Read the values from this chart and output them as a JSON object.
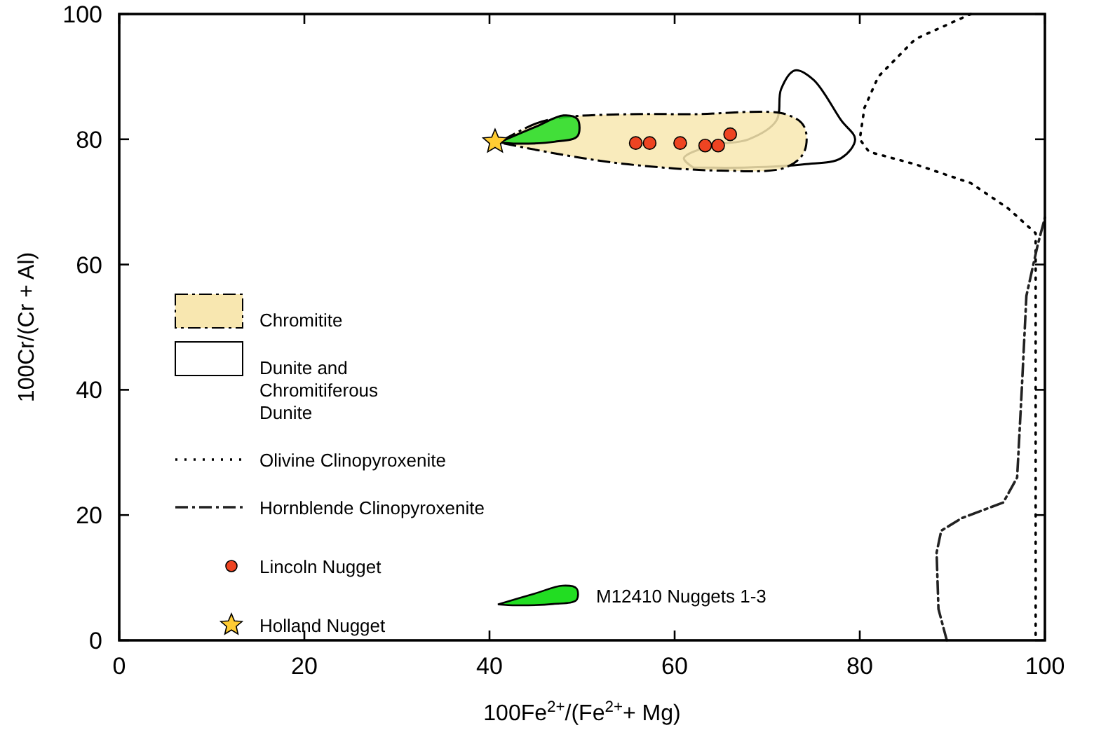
{
  "chart_data": {
    "type": "scatter",
    "xlabel": "100Fe$^{2+}$/(Fe$^{2+}$+ Mg)",
    "ylabel": "100Cr/(Cr + Al)",
    "xlim": [
      0,
      100
    ],
    "ylim": [
      0,
      100
    ],
    "xticks": [
      0,
      20,
      40,
      60,
      80,
      100
    ],
    "yticks": [
      0,
      20,
      40,
      60,
      80,
      100
    ],
    "grid": false,
    "legend": "left",
    "series": [
      {
        "name": "Dunite and Chromitiferous Dunite",
        "type": "area",
        "line_style": "solid",
        "color": "#ffffff",
        "x": [
          62,
          61,
          64,
          68,
          71,
          71.5,
          73,
          75,
          78,
          79.5,
          78,
          74,
          68,
          62
        ],
        "values": [
          75.5,
          77,
          79,
          80,
          83,
          88,
          91,
          89.5,
          83,
          80,
          77,
          76,
          75.5,
          75.5
        ]
      },
      {
        "name": "Chromitite",
        "type": "area",
        "line_style": "dashed",
        "color": "#f8e7b0",
        "x": [
          41,
          45,
          48,
          55,
          62,
          72,
          74,
          74,
          72,
          65,
          55,
          48,
          41
        ],
        "values": [
          79.5,
          82.5,
          83.5,
          84,
          84,
          84,
          82,
          78,
          75.5,
          75,
          76,
          77.5,
          79.5
        ]
      },
      {
        "name": "Olivine Clinopyroxenite",
        "type": "line",
        "line_style": "dotted",
        "color": "#000000",
        "x": [
          92,
          86,
          82,
          80.5,
          80,
          81,
          86,
          92,
          96,
          99,
          99,
          99,
          99
        ],
        "values": [
          100,
          96,
          90,
          85,
          80,
          78,
          76,
          73,
          69,
          65,
          60,
          30,
          0
        ]
      },
      {
        "name": "Hornblende Clinopyroxenite",
        "type": "line",
        "line_style": "dashed",
        "color": "#222222",
        "x": [
          89.4,
          88.5,
          88.3,
          88.8,
          91,
          95.5,
          97,
          97.5,
          98,
          99.2,
          100
        ],
        "values": [
          0,
          5,
          14,
          17.5,
          19.5,
          22,
          26,
          40,
          55,
          63,
          67.5
        ]
      },
      {
        "name": "M12410 Nuggets 1-3",
        "type": "area",
        "line_style": "solid",
        "color": "#22dd22",
        "x": [
          41,
          45,
          48,
          49.5,
          49.5,
          47,
          43,
          41
        ],
        "values": [
          79.5,
          82,
          83.8,
          83.2,
          80.5,
          79.6,
          79.3,
          79.5
        ]
      },
      {
        "name": "Lincoln Nugget",
        "marker": "circle",
        "color": "#ee4422",
        "x": [
          55.8,
          57.3,
          60.6,
          63.3,
          64.7,
          66
        ],
        "values": [
          79.4,
          79.4,
          79.4,
          79,
          79,
          80.8
        ]
      },
      {
        "name": "Holland Nugget",
        "marker": "star",
        "color": "#ffcc33",
        "x": [
          40.6
        ],
        "values": [
          79.6
        ]
      }
    ]
  }
}
